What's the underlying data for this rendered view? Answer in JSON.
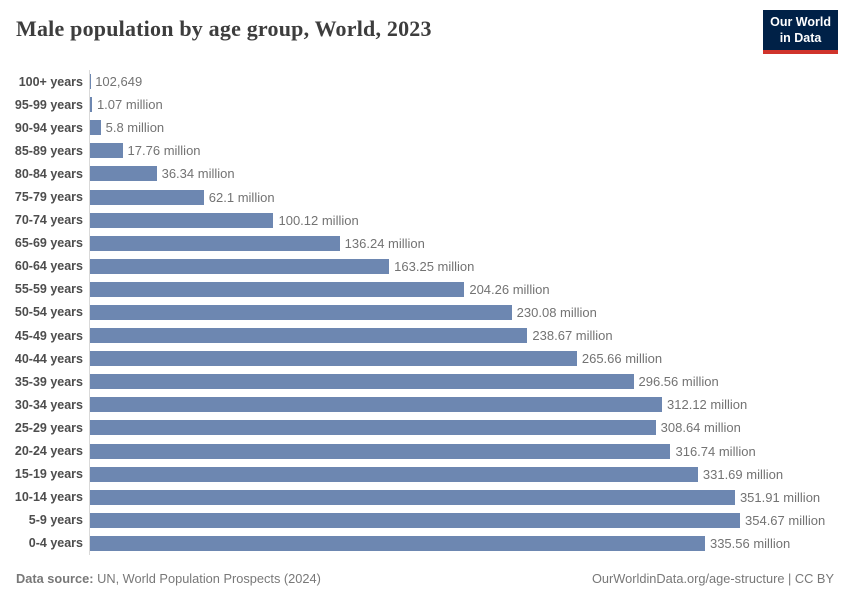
{
  "header": {
    "title": "Male population by age group, World, 2023"
  },
  "logo": {
    "line1": "Our World",
    "line2": "in Data"
  },
  "chart_data": {
    "type": "bar",
    "orientation": "horizontal",
    "title": "Male population by age group, World, 2023",
    "xlabel": "",
    "ylabel": "",
    "xlim": [
      0,
      354.67
    ],
    "unit": "million people",
    "grid": false,
    "categories": [
      "100+ years",
      "95-99 years",
      "90-94 years",
      "85-89 years",
      "80-84 years",
      "75-79 years",
      "70-74 years",
      "65-69 years",
      "60-64 years",
      "55-59 years",
      "50-54 years",
      "45-49 years",
      "40-44 years",
      "35-39 years",
      "30-34 years",
      "25-29 years",
      "20-24 years",
      "15-19 years",
      "10-14 years",
      "5-9 years",
      "0-4 years"
    ],
    "values_millions": [
      0.102649,
      1.07,
      5.8,
      17.76,
      36.34,
      62.1,
      100.12,
      136.24,
      163.25,
      204.26,
      230.08,
      238.67,
      265.66,
      296.56,
      312.12,
      308.64,
      316.74,
      331.69,
      351.91,
      354.67,
      335.56
    ],
    "value_labels": [
      "102,649",
      "1.07 million",
      "5.8 million",
      "17.76 million",
      "36.34 million",
      "62.1 million",
      "100.12 million",
      "136.24 million",
      "163.25 million",
      "204.26 million",
      "230.08 million",
      "238.67 million",
      "265.66 million",
      "296.56 million",
      "312.12 million",
      "308.64 million",
      "316.74 million",
      "331.69 million",
      "351.91 million",
      "354.67 million",
      "335.56 million"
    ],
    "bar_color": "#6d87b1",
    "axis_color": "#d9d9d9"
  },
  "footer": {
    "source_label": "Data source:",
    "source_text": " UN, World Population Prospects (2024)",
    "right_text": "OurWorldinData.org/age-structure | CC BY"
  }
}
